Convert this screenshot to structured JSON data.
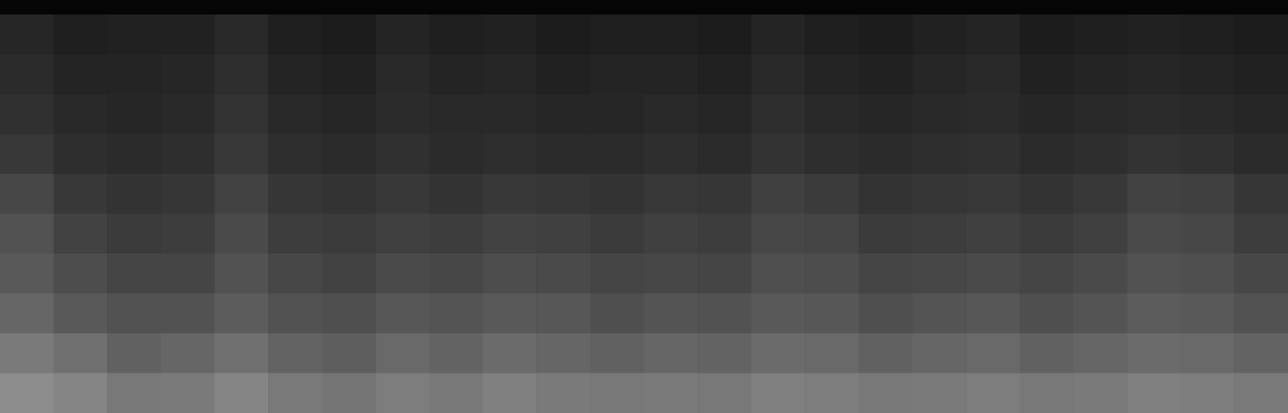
{
  "chart_data": {
    "type": "heatmap",
    "tick_labels": false,
    "color": "#ffffff",
    "zlim": [
      0,
      100
    ],
    "cells": [
      [
        15,
        12,
        13,
        13,
        16,
        12,
        11,
        14,
        12,
        13,
        11,
        12,
        12,
        11,
        14,
        12,
        11,
        13,
        14,
        11,
        12,
        13,
        12,
        11
      ],
      [
        17,
        14,
        14,
        15,
        18,
        14,
        13,
        16,
        14,
        15,
        13,
        14,
        14,
        13,
        16,
        14,
        13,
        15,
        16,
        13,
        14,
        15,
        14,
        13
      ],
      [
        19,
        16,
        15,
        16,
        20,
        16,
        15,
        17,
        16,
        16,
        15,
        15,
        16,
        15,
        18,
        16,
        15,
        16,
        17,
        15,
        16,
        17,
        16,
        15
      ],
      [
        22,
        18,
        17,
        18,
        22,
        18,
        17,
        19,
        17,
        18,
        17,
        17,
        18,
        17,
        20,
        18,
        17,
        18,
        19,
        17,
        18,
        20,
        19,
        17
      ],
      [
        28,
        22,
        20,
        21,
        26,
        21,
        20,
        22,
        20,
        22,
        21,
        20,
        22,
        21,
        25,
        23,
        20,
        21,
        22,
        20,
        22,
        26,
        25,
        21
      ],
      [
        32,
        26,
        23,
        24,
        29,
        24,
        23,
        25,
        24,
        26,
        25,
        23,
        25,
        24,
        28,
        27,
        23,
        24,
        25,
        23,
        25,
        29,
        28,
        24
      ],
      [
        35,
        30,
        27,
        27,
        32,
        28,
        26,
        29,
        28,
        30,
        29,
        27,
        28,
        27,
        31,
        30,
        27,
        28,
        29,
        27,
        29,
        32,
        31,
        28
      ],
      [
        40,
        35,
        32,
        32,
        36,
        32,
        31,
        34,
        33,
        35,
        34,
        31,
        33,
        32,
        35,
        34,
        31,
        33,
        34,
        31,
        33,
        36,
        35,
        32
      ],
      [
        48,
        44,
        38,
        40,
        44,
        39,
        37,
        41,
        39,
        42,
        40,
        38,
        40,
        39,
        42,
        41,
        38,
        40,
        41,
        38,
        40,
        42,
        41,
        39
      ],
      [
        55,
        52,
        47,
        48,
        52,
        48,
        46,
        49,
        47,
        50,
        48,
        47,
        48,
        47,
        50,
        49,
        47,
        48,
        49,
        47,
        48,
        50,
        49,
        48
      ]
    ]
  }
}
